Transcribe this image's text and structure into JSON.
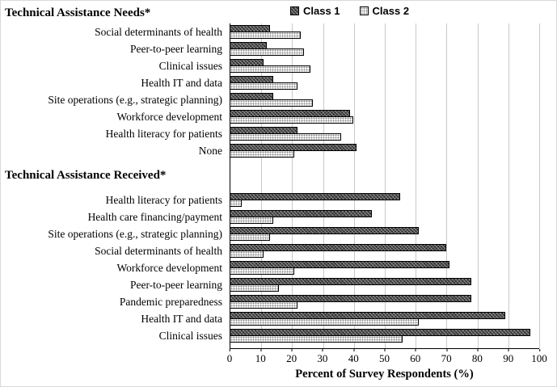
{
  "legend": {
    "items": [
      {
        "label": "Class 1",
        "swatch": "class1"
      },
      {
        "label": "Class 2",
        "swatch": "class2"
      }
    ]
  },
  "colors": {
    "class1_fill": "#4d4d4d",
    "class2_fill": "#ffffff",
    "class2_dot": "#8a8a8a",
    "gridline": "#c9c9c9",
    "axis": "#000000"
  },
  "chart_data": {
    "type": "bar",
    "orientation": "horizontal",
    "title": "",
    "xlabel": "Percent of Survey Respondents (%)",
    "xlim": [
      0,
      100
    ],
    "x_ticks": [
      0,
      10,
      20,
      30,
      40,
      50,
      60,
      70,
      80,
      90,
      100
    ],
    "grid": "vertical",
    "legend_position": "top",
    "series_names": [
      "Class 1",
      "Class 2"
    ],
    "groups": [
      {
        "title": "Technical Assistance Needs*",
        "rows": [
          {
            "label": "Social determinants of health",
            "values": [
              13,
              23
            ]
          },
          {
            "label": "Peer-to-peer learning",
            "values": [
              12,
              24
            ]
          },
          {
            "label": "Clinical issues",
            "values": [
              11,
              26
            ]
          },
          {
            "label": "Health IT and data",
            "values": [
              14,
              22
            ]
          },
          {
            "label": "Site operations (e.g., strategic planning)",
            "values": [
              14,
              27
            ]
          },
          {
            "label": "Workforce development",
            "values": [
              39,
              40
            ]
          },
          {
            "label": "Health literacy for patients",
            "values": [
              22,
              36
            ]
          },
          {
            "label": "None",
            "values": [
              41,
              21
            ]
          }
        ]
      },
      {
        "title": "Technical Assistance Received*",
        "rows": [
          {
            "label": "Health literacy for patients",
            "values": [
              55,
              4
            ]
          },
          {
            "label": "Health care financing/payment",
            "values": [
              46,
              14
            ]
          },
          {
            "label": "Site operations (e.g., strategic planning)",
            "values": [
              61,
              13
            ]
          },
          {
            "label": "Social determinants of health",
            "values": [
              70,
              11
            ]
          },
          {
            "label": "Workforce development",
            "values": [
              71,
              21
            ]
          },
          {
            "label": "Peer-to-peer learning",
            "values": [
              78,
              16
            ]
          },
          {
            "label": "Pandemic preparedness",
            "values": [
              78,
              22
            ]
          },
          {
            "label": "Health IT and data",
            "values": [
              89,
              61
            ]
          },
          {
            "label": "Clinical issues",
            "values": [
              97,
              56
            ]
          }
        ]
      }
    ]
  }
}
